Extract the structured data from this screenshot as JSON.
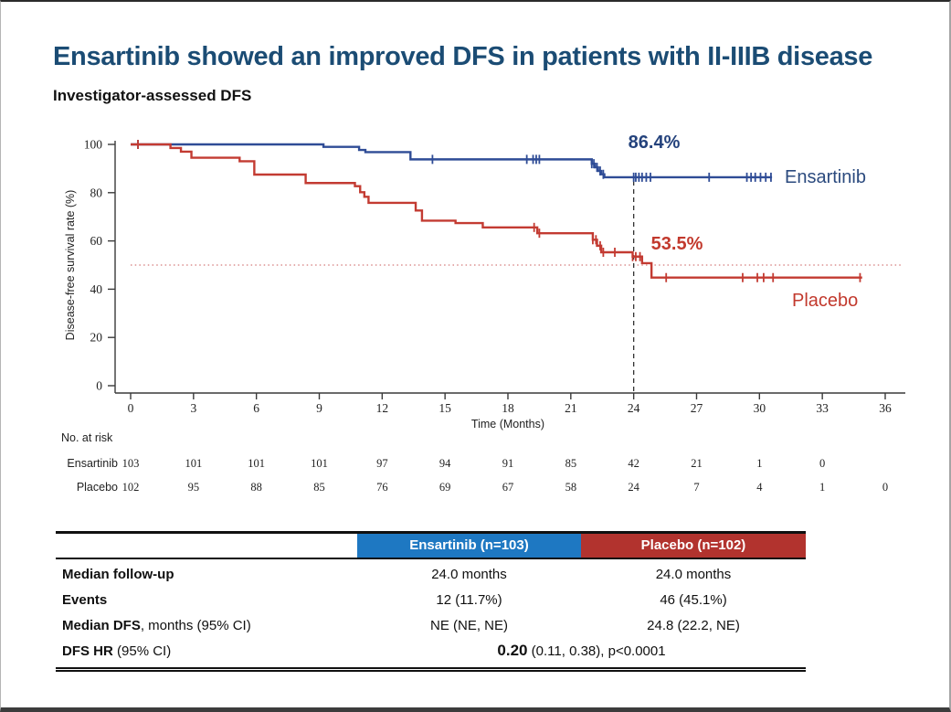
{
  "title": "Ensartinib showed an improved DFS in patients with II-IIIB disease",
  "subtitle": "Investigator-assessed DFS",
  "colors": {
    "title": "#1b4c74",
    "ensartinib_curve": "#2f4c96",
    "placebo_curve": "#c33b32",
    "ensartinib_annotation": "#24427c",
    "placebo_annotation": "#c2392d",
    "header_blue": "#1e78c2",
    "header_red": "#b2332e",
    "axis": "#3a3a3a",
    "dotted_reference": "#dc8f8f",
    "dashed_reference": "#333333"
  },
  "chart_data": {
    "type": "line",
    "subtype": "kaplan-meier-step",
    "title": "",
    "xlabel": "Time (Months)",
    "ylabel": "Disease-free survival rate (%)",
    "xlim": [
      0,
      36
    ],
    "ylim": [
      0,
      100
    ],
    "x_ticks": [
      0,
      3,
      6,
      9,
      12,
      15,
      18,
      21,
      24,
      27,
      30,
      33,
      36
    ],
    "y_ticks": [
      0,
      20,
      40,
      60,
      80,
      100
    ],
    "grid": false,
    "legend_position": "right-of-curves",
    "reference_lines": {
      "vertical_dashed_at_month": 24,
      "horizontal_dotted_at_percent": 50
    },
    "series": [
      {
        "name": "Ensartinib",
        "color": "#2f4c96",
        "rate_at_24_months": 86.4,
        "annotation": {
          "text": "86.4%",
          "month": 24
        },
        "steps": [
          [
            0,
            100
          ],
          [
            9.2,
            99
          ],
          [
            10.9,
            97.7
          ],
          [
            11.2,
            96.8
          ],
          [
            13.35,
            93.8
          ],
          [
            22.0,
            92
          ],
          [
            22.15,
            90.5
          ],
          [
            22.3,
            89
          ],
          [
            22.45,
            87.6
          ],
          [
            22.6,
            86.4
          ]
        ],
        "end_month": 30.6,
        "censor_months": [
          0.35,
          14.4,
          18.9,
          19.2,
          19.35,
          19.5,
          22.0,
          22.1,
          22.25,
          22.4,
          22.55,
          24.0,
          24.1,
          24.25,
          24.4,
          24.6,
          24.8,
          27.6,
          29.4,
          29.6,
          29.8,
          30.05,
          30.3,
          30.55
        ]
      },
      {
        "name": "Placebo",
        "color": "#c33b32",
        "rate_at_24_months": 53.5,
        "annotation": {
          "text": "53.5%",
          "month": 24
        },
        "steps": [
          [
            0,
            100
          ],
          [
            1.9,
            98.5
          ],
          [
            2.4,
            97
          ],
          [
            2.9,
            94.5
          ],
          [
            5.2,
            93
          ],
          [
            5.9,
            87.5
          ],
          [
            8.35,
            84
          ],
          [
            10.7,
            82.7
          ],
          [
            10.95,
            80.2
          ],
          [
            11.15,
            78.3
          ],
          [
            11.35,
            75.8
          ],
          [
            13.6,
            72.6
          ],
          [
            13.9,
            68.4
          ],
          [
            15.5,
            67.4
          ],
          [
            16.8,
            65.6
          ],
          [
            19.4,
            63.2
          ],
          [
            22.05,
            60.5
          ],
          [
            22.25,
            58
          ],
          [
            22.45,
            55.3
          ],
          [
            23.95,
            53.5
          ],
          [
            24.4,
            50.8
          ],
          [
            24.85,
            44.8
          ]
        ],
        "end_month": 34.9,
        "censor_months": [
          0.35,
          19.25,
          19.5,
          22.05,
          22.2,
          22.4,
          22.55,
          23.1,
          23.95,
          24.1,
          24.3,
          25.55,
          29.2,
          29.9,
          30.2,
          30.65,
          34.8
        ]
      }
    ]
  },
  "risk_table": {
    "title": "No. at risk",
    "months": [
      0,
      3,
      6,
      9,
      12,
      15,
      18,
      21,
      24,
      27,
      30,
      33,
      36
    ],
    "rows": [
      {
        "label": "Ensartinib",
        "values": [
          "103",
          "101",
          "101",
          "101",
          "97",
          "94",
          "91",
          "85",
          "42",
          "21",
          "1",
          "0"
        ]
      },
      {
        "label": "Placebo",
        "values": [
          "102",
          "95",
          "88",
          "85",
          "76",
          "69",
          "67",
          "58",
          "24",
          "7",
          "4",
          "1",
          "0"
        ]
      }
    ]
  },
  "summary_table": {
    "headers": [
      {
        "label": "Ensartinib (n=103)",
        "color": "#1e78c2"
      },
      {
        "label": "Placebo (n=102)",
        "color": "#b2332e"
      }
    ],
    "rows": [
      {
        "label_bold": "Median follow-up",
        "label_rest": "",
        "col1": "24.0 months",
        "col2": "24.0 months"
      },
      {
        "label_bold": "Events",
        "label_rest": "",
        "col1": "12 (11.7%)",
        "col2": "46 (45.1%)"
      },
      {
        "label_bold": "Median DFS",
        "label_rest": ", months (95% CI)",
        "col1": "NE (NE, NE)",
        "col2": "24.8 (22.2, NE)"
      },
      {
        "label_bold": "DFS HR",
        "label_rest": " (95% CI)",
        "span_bold": "0.20",
        "span_rest": " (0.11, 0.38), p<0.0001"
      }
    ]
  }
}
